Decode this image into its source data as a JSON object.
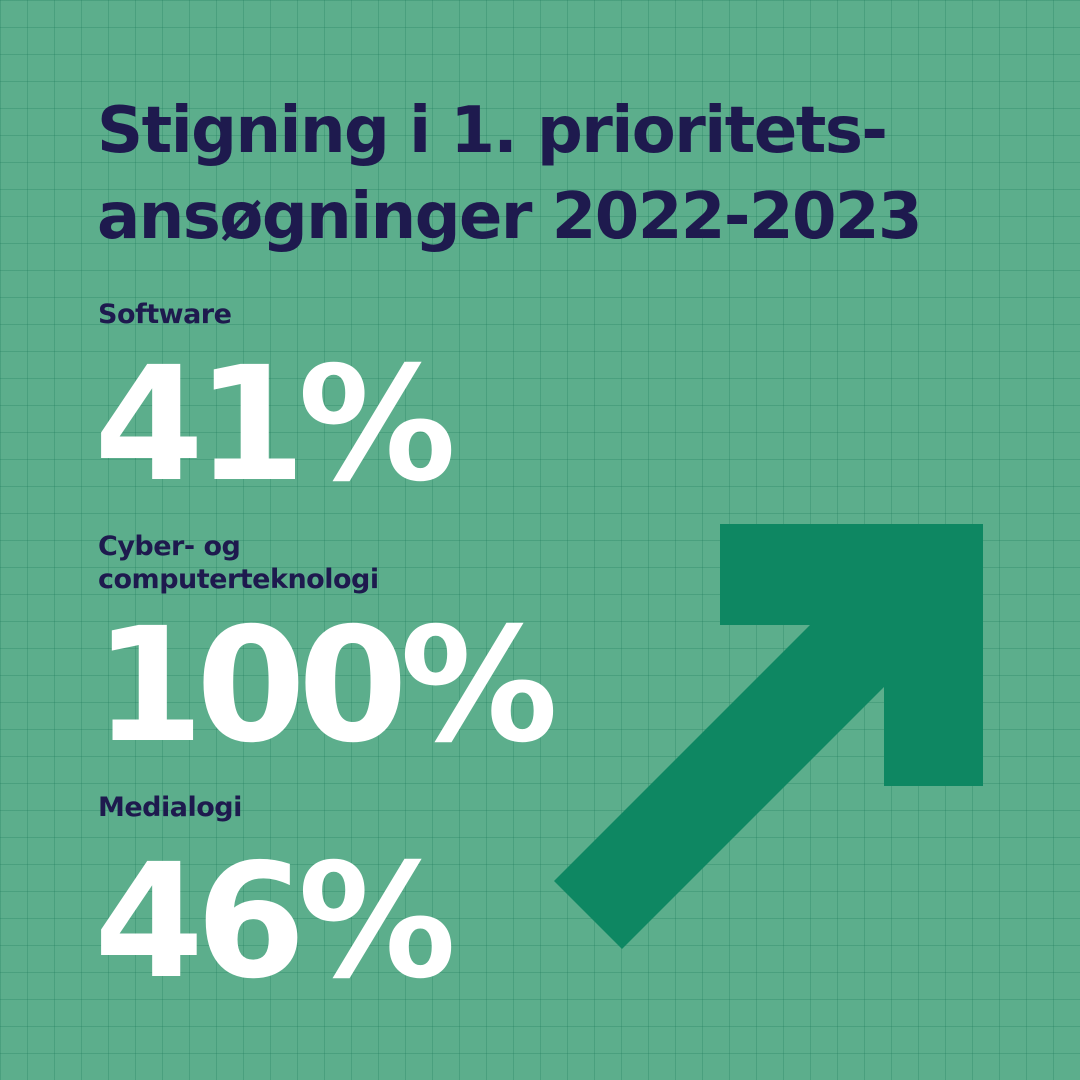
{
  "title": {
    "line1": "Stigning i 1. prioritets-",
    "line2": "ansøgninger 2022-2023"
  },
  "stats": [
    {
      "label_lines": [
        "Software"
      ],
      "value": "41%"
    },
    {
      "label_lines": [
        "Cyber- og",
        "computerteknologi"
      ],
      "value": "100%"
    },
    {
      "label_lines": [
        "Medialogi"
      ],
      "value": "46%"
    }
  ],
  "icons": {
    "arrow": "arrow-up-right-icon"
  },
  "colors": {
    "background": "#5cae8c",
    "grid": "#3d9a78",
    "title_text": "#1e1a4e",
    "value_text": "#ffffff",
    "arrow": "#0e8762"
  }
}
